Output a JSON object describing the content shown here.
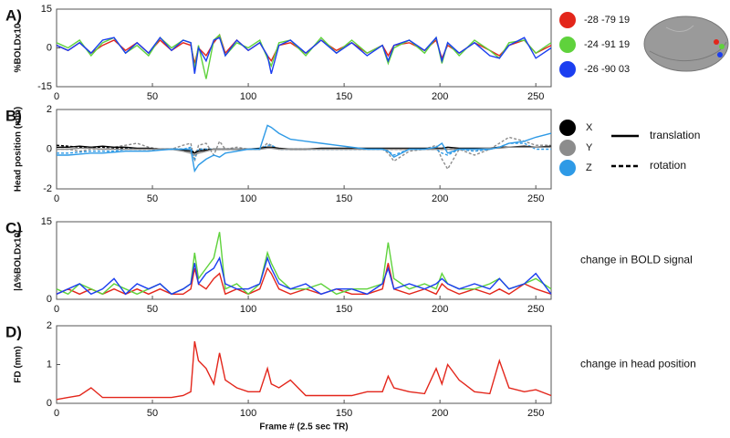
{
  "chart_data": [
    {
      "type": "line",
      "label": "A)",
      "ylabel": "%BOLDx10",
      "xlim": [
        0,
        258
      ],
      "xticks": [
        0,
        50,
        100,
        150,
        200,
        250
      ],
      "ylim": [
        -15,
        15
      ],
      "yticks": [
        -15,
        0,
        15
      ],
      "x": [
        0,
        6,
        12,
        18,
        24,
        30,
        36,
        42,
        48,
        54,
        60,
        66,
        70,
        72,
        74,
        78,
        82,
        85,
        88,
        94,
        100,
        106,
        110,
        112,
        116,
        122,
        130,
        138,
        146,
        154,
        162,
        170,
        173,
        176,
        184,
        192,
        198,
        201,
        204,
        210,
        218,
        226,
        231,
        236,
        244,
        250,
        258
      ],
      "series": [
        {
          "name": "-28 -79 19",
          "color": "#e3261b",
          "values": [
            1,
            -1,
            2,
            -2,
            1,
            3,
            -1,
            2,
            -2,
            3,
            -1,
            2,
            1,
            -6,
            0,
            -3,
            2,
            5,
            -2,
            3,
            -1,
            2,
            -3,
            -5,
            1,
            2,
            -2,
            3,
            -1,
            2,
            -2,
            1,
            -3,
            1,
            2,
            -1,
            3,
            -4,
            1,
            -2,
            2,
            -1,
            -3,
            1,
            3,
            -2,
            1
          ]
        },
        {
          "name": "-24 -91 19",
          "color": "#5fd23c",
          "values": [
            2,
            0,
            3,
            -3,
            2,
            4,
            -2,
            1,
            -3,
            4,
            0,
            3,
            2,
            -8,
            1,
            -12,
            3,
            5,
            -3,
            2,
            0,
            3,
            -4,
            -7,
            2,
            3,
            -3,
            4,
            -2,
            3,
            -2,
            1,
            -6,
            0,
            3,
            -2,
            4,
            -6,
            2,
            -3,
            3,
            -1,
            -4,
            2,
            3,
            -2,
            2
          ]
        },
        {
          "name": "-26 -90 03",
          "color": "#1b3ef0",
          "values": [
            1,
            -1,
            2,
            -2,
            3,
            4,
            -2,
            2,
            -2,
            4,
            -1,
            3,
            2,
            -10,
            0,
            -5,
            3,
            4,
            -3,
            3,
            -1,
            2,
            -3,
            -10,
            1,
            3,
            -2,
            3,
            -2,
            2,
            -3,
            1,
            -5,
            1,
            3,
            -1,
            4,
            -5,
            2,
            -2,
            2,
            -3,
            -4,
            1,
            4,
            -4,
            0
          ]
        }
      ]
    },
    {
      "type": "line",
      "label": "B)",
      "ylabel": "Head position (mm)",
      "xlim": [
        0,
        258
      ],
      "xticks": [
        0,
        50,
        100,
        150,
        200,
        250
      ],
      "ylim": [
        -2,
        2
      ],
      "yticks": [
        -2,
        0,
        2
      ],
      "line_styles": [
        "translation",
        "rotation"
      ],
      "x": [
        0,
        6,
        12,
        18,
        24,
        30,
        36,
        42,
        48,
        54,
        60,
        66,
        70,
        72,
        74,
        78,
        82,
        85,
        88,
        94,
        100,
        106,
        110,
        112,
        116,
        122,
        130,
        138,
        146,
        154,
        162,
        170,
        173,
        176,
        184,
        192,
        198,
        201,
        204,
        210,
        218,
        226,
        231,
        236,
        244,
        250,
        258
      ],
      "series": [
        {
          "name": "X",
          "color": "#000000",
          "translation": [
            0.1,
            0.1,
            0.15,
            0.1,
            0.15,
            0.1,
            0.1,
            0.05,
            0.05,
            0,
            0,
            -0.05,
            -0.1,
            -0.2,
            -0.1,
            -0.05,
            0,
            0,
            0,
            0,
            0,
            0.05,
            0.1,
            0.1,
            0.05,
            0,
            0,
            0.05,
            0.05,
            0.05,
            0.05,
            0.05,
            0.05,
            0.05,
            0.05,
            0.05,
            0.05,
            0.05,
            0.1,
            0.05,
            0.05,
            0.05,
            0.1,
            0.1,
            0.15,
            0.1,
            0.15
          ],
          "rotation": [
            0.2,
            0.15,
            0.1,
            0.1,
            0.1,
            0.05,
            0.05,
            0,
            0,
            0,
            0,
            0,
            0,
            -0.2,
            0,
            0,
            0,
            0,
            0,
            0,
            0,
            0,
            0.1,
            0.1,
            0,
            0,
            0,
            0,
            0,
            0,
            0,
            0,
            0,
            0,
            0,
            0,
            0,
            0,
            0,
            0,
            0,
            0,
            0.1,
            0.1,
            0.1,
            0.1,
            0.1
          ]
        },
        {
          "name": "Y",
          "color": "#8c8c8c",
          "translation": [
            0,
            0,
            0.05,
            0.05,
            0,
            0,
            0,
            0,
            0,
            0,
            0,
            -0.1,
            -0.2,
            -0.3,
            -0.2,
            -0.1,
            0,
            0,
            0,
            0,
            0,
            0,
            0.05,
            0.05,
            0,
            0,
            0,
            0,
            0,
            0,
            0,
            0,
            0,
            0,
            0,
            0,
            0,
            0,
            0,
            0,
            0,
            0.05,
            0.05,
            0.1,
            0.1,
            0.1,
            0.1
          ],
          "rotation": [
            0,
            0,
            -0.1,
            0,
            0,
            0.1,
            0.2,
            0.3,
            0.1,
            0,
            0,
            0.2,
            0.3,
            -0.6,
            0.2,
            0.3,
            -0.3,
            0.4,
            0,
            0.1,
            0,
            0,
            0.3,
            0.2,
            0,
            0,
            0,
            0,
            0,
            0,
            0,
            0,
            -0.2,
            -0.6,
            -0.1,
            0,
            0.2,
            -0.5,
            -1,
            0,
            -0.3,
            0,
            0.3,
            0.6,
            0.4,
            0.2,
            0.2
          ]
        },
        {
          "name": "Z",
          "color": "#2e9ae6",
          "translation": [
            -0.3,
            -0.3,
            -0.25,
            -0.2,
            -0.2,
            -0.15,
            -0.1,
            -0.1,
            -0.1,
            -0.05,
            0,
            0,
            0,
            -1.1,
            -0.8,
            -0.5,
            -0.3,
            -0.4,
            -0.2,
            -0.1,
            0,
            0,
            1.2,
            1.1,
            0.8,
            0.5,
            0.4,
            0.3,
            0.2,
            0.1,
            0,
            0,
            -0.1,
            -0.4,
            0,
            0,
            0.1,
            0.3,
            -0.2,
            0,
            0,
            0,
            0.1,
            0.3,
            0.4,
            0.6,
            0.8
          ],
          "rotation": [
            -0.2,
            -0.2,
            -0.15,
            -0.1,
            -0.1,
            -0.1,
            0,
            0,
            0,
            0,
            0,
            0,
            0.1,
            -0.5,
            0,
            0,
            0,
            0,
            0,
            0,
            0,
            0,
            0.2,
            0.2,
            0,
            0,
            0,
            0,
            0,
            0,
            0,
            0,
            -0.1,
            -0.3,
            0,
            0,
            0,
            -0.2,
            -0.3,
            0,
            -0.1,
            0,
            0.1,
            0.3,
            0.3,
            0,
            0
          ]
        }
      ]
    },
    {
      "type": "line",
      "label": "C)",
      "ylabel": "|Δ%BOLDx10|",
      "note": "change in BOLD signal",
      "xlim": [
        0,
        258
      ],
      "xticks": [
        0,
        50,
        100,
        150,
        200,
        250
      ],
      "ylim": [
        0,
        15
      ],
      "yticks": [
        0,
        15
      ],
      "x": [
        0,
        6,
        12,
        18,
        24,
        30,
        36,
        42,
        48,
        54,
        60,
        66,
        70,
        72,
        74,
        78,
        82,
        85,
        88,
        94,
        100,
        106,
        110,
        112,
        116,
        122,
        130,
        138,
        146,
        154,
        162,
        170,
        173,
        176,
        184,
        192,
        198,
        201,
        204,
        210,
        218,
        226,
        231,
        236,
        244,
        250,
        258
      ],
      "series": [
        {
          "name": "-28 -79 19",
          "color": "#e3261b",
          "values": [
            1,
            2,
            1,
            2,
            1,
            2,
            1,
            2,
            1,
            2,
            1,
            1,
            2,
            6,
            3,
            2,
            4,
            5,
            1,
            2,
            1,
            2,
            6,
            5,
            2,
            1,
            2,
            1,
            2,
            1,
            1,
            2,
            7,
            2,
            1,
            2,
            1,
            3,
            2,
            1,
            2,
            1,
            2,
            1,
            3,
            2,
            1
          ]
        },
        {
          "name": "-24 -91 19",
          "color": "#5fd23c",
          "values": [
            2,
            1,
            3,
            2,
            1,
            3,
            2,
            1,
            2,
            3,
            1,
            2,
            3,
            9,
            4,
            6,
            8,
            13,
            2,
            3,
            1,
            3,
            9,
            7,
            4,
            2,
            2,
            3,
            1,
            2,
            2,
            3,
            11,
            4,
            2,
            3,
            2,
            5,
            3,
            2,
            2,
            3,
            4,
            2,
            3,
            4,
            2
          ]
        },
        {
          "name": "-26 -90 03",
          "color": "#1b3ef0",
          "values": [
            1,
            2,
            3,
            1,
            2,
            4,
            1,
            3,
            2,
            3,
            1,
            2,
            3,
            7,
            3,
            5,
            6,
            8,
            3,
            2,
            2,
            3,
            8,
            6,
            3,
            2,
            3,
            1,
            2,
            2,
            1,
            3,
            6,
            2,
            3,
            2,
            3,
            4,
            3,
            2,
            3,
            2,
            4,
            2,
            3,
            5,
            1
          ]
        }
      ]
    },
    {
      "type": "line",
      "label": "D)",
      "ylabel": "FD (mm)",
      "xlabel": "Frame # (2.5 sec TR)",
      "note": "change in head position",
      "xlim": [
        0,
        258
      ],
      "xticks": [
        0,
        50,
        100,
        150,
        200,
        250
      ],
      "ylim": [
        0,
        2
      ],
      "yticks": [
        0,
        1,
        2
      ],
      "x": [
        0,
        6,
        12,
        18,
        24,
        30,
        36,
        42,
        48,
        54,
        60,
        66,
        70,
        72,
        74,
        78,
        82,
        85,
        88,
        94,
        100,
        106,
        110,
        112,
        116,
        122,
        130,
        138,
        146,
        154,
        162,
        170,
        173,
        176,
        184,
        192,
        198,
        201,
        204,
        210,
        218,
        226,
        231,
        236,
        244,
        250,
        258
      ],
      "series": [
        {
          "name": "FD",
          "color": "#e3261b",
          "values": [
            0.1,
            0.15,
            0.2,
            0.4,
            0.15,
            0.15,
            0.15,
            0.15,
            0.15,
            0.15,
            0.15,
            0.2,
            0.3,
            1.6,
            1.1,
            0.9,
            0.5,
            1.3,
            0.6,
            0.4,
            0.3,
            0.3,
            0.9,
            0.5,
            0.4,
            0.6,
            0.2,
            0.2,
            0.2,
            0.2,
            0.3,
            0.3,
            0.7,
            0.4,
            0.3,
            0.25,
            0.9,
            0.5,
            1.0,
            0.6,
            0.3,
            0.25,
            1.1,
            0.4,
            0.3,
            0.35,
            0.2
          ]
        }
      ]
    }
  ]
}
